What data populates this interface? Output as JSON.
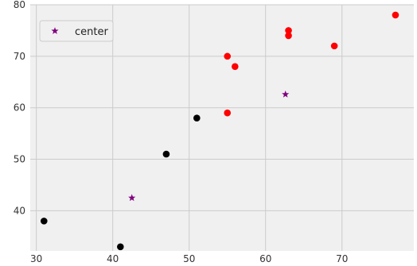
{
  "chart_data": {
    "type": "scatter",
    "title": "",
    "xlabel": "",
    "ylabel": "",
    "xlim": [
      29.2,
      79.4
    ],
    "ylim": [
      32.2,
      80.0
    ],
    "xticks": [
      30,
      40,
      50,
      60,
      70
    ],
    "yticks": [
      40,
      50,
      60,
      70,
      80
    ],
    "grid": true,
    "legend": {
      "position": "top-left",
      "entries": [
        "center"
      ]
    },
    "colors": {
      "background": "#f0f0f0",
      "grid": "#cbcbcb",
      "cluster_red": "#ff0000",
      "cluster_black": "#000000",
      "center": "#800080"
    },
    "series": [
      {
        "color": "#ff0000",
        "marker": "circle",
        "points": [
          [
            55,
            70
          ],
          [
            56,
            68
          ],
          [
            55,
            59
          ],
          [
            63,
            75
          ],
          [
            63,
            74
          ],
          [
            69,
            72
          ],
          [
            77,
            78
          ]
        ]
      },
      {
        "color": "#000000",
        "marker": "circle",
        "points": [
          [
            51,
            58
          ],
          [
            47,
            51
          ],
          [
            31,
            38
          ],
          [
            41,
            33
          ]
        ]
      },
      {
        "name": "center",
        "color": "#800080",
        "marker": "star",
        "points": [
          [
            42.5,
            42.5
          ],
          [
            62.6,
            62.6
          ]
        ]
      }
    ]
  }
}
